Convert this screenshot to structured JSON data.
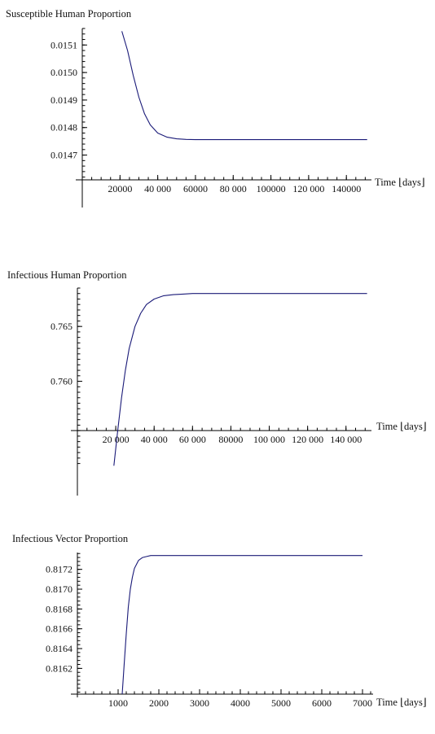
{
  "chart_data": [
    {
      "type": "line",
      "title": "Susceptible Human Proportion",
      "xlabel": "Time ⌊days⌋",
      "xlim": [
        0,
        152000
      ],
      "ylim": [
        0.01461,
        0.01516
      ],
      "x_axis_at_y": 0.01461,
      "xticks": [
        20000,
        40000,
        60000,
        80000,
        100000,
        120000,
        140000
      ],
      "xtick_labels": [
        "20000",
        "40 000",
        "60000",
        "80 000",
        "100000",
        "120 000",
        "140000"
      ],
      "xminor_step": 5000,
      "yticks": [
        0.0147,
        0.0148,
        0.0149,
        0.015,
        0.0151
      ],
      "ytick_labels": [
        "0.0147",
        "0.0148",
        "0.0149",
        "0.0150",
        "0.0151"
      ],
      "yminor_step": 2e-05,
      "series": [
        {
          "color": "#1a1a78",
          "x": [
            21000,
            24000,
            27000,
            30000,
            33000,
            36000,
            40000,
            45000,
            50000,
            55000,
            60000,
            80000,
            100000,
            120000,
            140000,
            151000
          ],
          "y": [
            0.01515,
            0.01508,
            0.01499,
            0.01491,
            0.01485,
            0.01481,
            0.01478,
            0.014765,
            0.014759,
            0.014757,
            0.014756,
            0.014756,
            0.014756,
            0.014756,
            0.014756,
            0.014756
          ]
        }
      ]
    },
    {
      "type": "line",
      "title": "Infectious Human Proportion",
      "xlabel": "Time ⌊days⌋",
      "xlim": [
        0,
        152000
      ],
      "ylim": [
        0.7521,
        0.7685
      ],
      "x_axis_at_y": 0.7555,
      "xticks": [
        20000,
        40000,
        60000,
        80000,
        100000,
        120000,
        140000
      ],
      "xtick_labels": [
        "20 000",
        "40 000",
        "60 000",
        "80000",
        "100 000",
        "120 000",
        "140 000"
      ],
      "xminor_step": 5000,
      "yticks": [
        0.76,
        0.765
      ],
      "ytick_labels": [
        "0.760",
        "0.765"
      ],
      "yminor_step": 0.0005,
      "series": [
        {
          "color": "#1a1a78",
          "x": [
            19000,
            21000,
            23000,
            25000,
            27000,
            30000,
            33000,
            36000,
            40000,
            45000,
            50000,
            55000,
            60000,
            80000,
            100000,
            120000,
            140000,
            151000
          ],
          "y": [
            0.7523,
            0.7555,
            0.7585,
            0.761,
            0.763,
            0.765,
            0.7662,
            0.767,
            0.7675,
            0.7678,
            0.7679,
            0.76795,
            0.768,
            0.768,
            0.768,
            0.768,
            0.768,
            0.768
          ]
        }
      ]
    },
    {
      "type": "line",
      "title": "Infectious Vector Proportion",
      "xlabel": "Time ⌊days⌋",
      "xlim": [
        0,
        7200
      ],
      "ylim": [
        0.81594,
        0.81737
      ],
      "x_axis_at_y": 0.81594,
      "xticks": [
        1000,
        2000,
        3000,
        4000,
        5000,
        6000,
        7000
      ],
      "xtick_labels": [
        "1000",
        "2000",
        "3000",
        "4000",
        "5000",
        "6000",
        "7000"
      ],
      "xminor_step": 200,
      "yticks": [
        0.8162,
        0.8164,
        0.8166,
        0.8168,
        0.817,
        0.8172
      ],
      "ytick_labels": [
        "0.8162",
        "0.8164",
        "0.8166",
        "0.8168",
        "0.8170",
        "0.8172"
      ],
      "yminor_step": 4e-05,
      "series": [
        {
          "color": "#1a1a78",
          "x": [
            1100,
            1150,
            1200,
            1250,
            1300,
            1350,
            1400,
            1500,
            1600,
            1700,
            1800,
            2000,
            2500,
            3000,
            4000,
            5000,
            6000,
            7000
          ],
          "y": [
            0.81594,
            0.81625,
            0.81655,
            0.81682,
            0.817,
            0.81712,
            0.81721,
            0.81729,
            0.81732,
            0.81733,
            0.81734,
            0.81734,
            0.81734,
            0.81734,
            0.81734,
            0.81734,
            0.81734,
            0.81734
          ]
        }
      ]
    }
  ]
}
